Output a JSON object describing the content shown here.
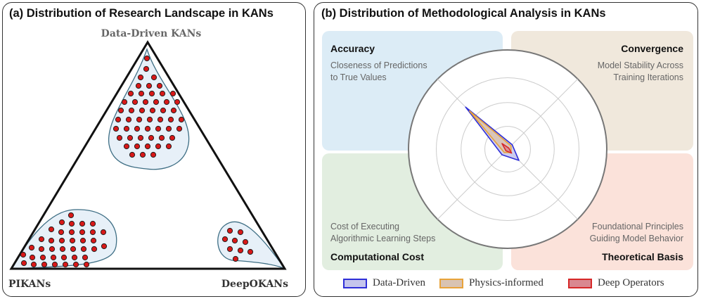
{
  "panel_a": {
    "title": "(a) Distribution of Research Landscape in KANs",
    "vertices": {
      "top": "Data-Driven KANs",
      "bottom_left": "PIKANs",
      "bottom_right": "DeepOKANs"
    },
    "cluster_point_counts": {
      "data_driven": 52,
      "pikans": 39,
      "deepokans": 9
    }
  },
  "panel_b": {
    "title": "(b) Distribution of Methodological Analysis in KANs",
    "quadrants": {
      "accuracy": {
        "title": "Accuracy",
        "desc_line1": "Closeness of Predictions",
        "desc_line2": "to True Values"
      },
      "convergence": {
        "title": "Convergence",
        "desc_line1": "Model Stability Across",
        "desc_line2": "Training Iterations"
      },
      "computational_cost": {
        "title": "Computational Cost",
        "desc_line1": "Cost of Executing",
        "desc_line2": "Algorithmic Learning Steps"
      },
      "theoretical_basis": {
        "title": "Theoretical Basis",
        "desc_line1": "Foundational Principles",
        "desc_line2": "Guiding Model Behavior"
      }
    },
    "radar": {
      "axes": [
        "Accuracy",
        "Convergence",
        "Theoretical Basis",
        "Computational Cost"
      ],
      "max": 1.0,
      "series": [
        {
          "name": "Data-Driven",
          "values": [
            0.75,
            0.08,
            0.2,
            0.1
          ],
          "stroke": "#2f2fd8",
          "fill": "#c5c5ec"
        },
        {
          "name": "Physics-informed",
          "values": [
            0.68,
            0.06,
            0.06,
            0.06
          ],
          "stroke": "#e8a33a",
          "fill": "#d9c3b2"
        },
        {
          "name": "Deep Operators",
          "values": [
            0.1,
            0.02,
            0.07,
            0.03
          ],
          "stroke": "#d62828",
          "fill": "#d98890"
        }
      ]
    },
    "legend": [
      "Data-Driven",
      "Physics-informed",
      "Deep Operators"
    ]
  },
  "colors": {
    "accuracy_bg": "#dcecf6",
    "convergence_bg": "#f0e8dc",
    "cost_bg": "#e2eee0",
    "theory_bg": "#fbe2da",
    "blob_fill": "#e7f0f8",
    "blob_stroke": "#3f6f85",
    "dot_fill": "#d81818"
  }
}
